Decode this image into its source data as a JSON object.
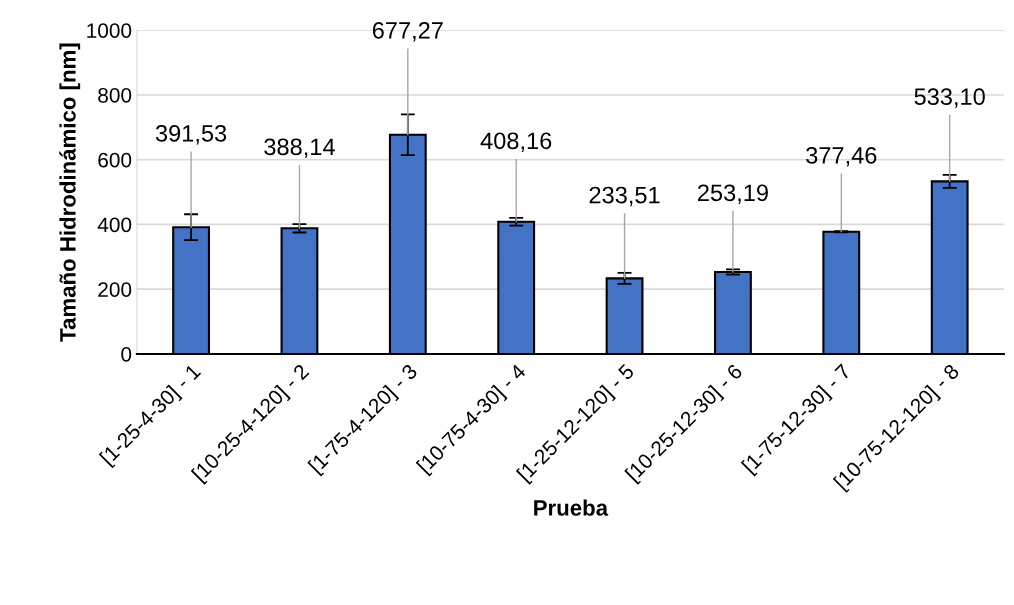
{
  "chart_data": {
    "type": "bar",
    "xlabel": "Prueba",
    "ylabel": "Tamaño Hidrodinámico [nm]",
    "categories": [
      "[1-25-4-30] - 1",
      "[10-25-4-120] - 2",
      "[1-75-4-120] - 3",
      "[10-75-4-30] - 4",
      "[1-25-12-120] - 5",
      "[10-25-12-30] - 6",
      "[1-75-12-30] - 7",
      "[10-75-12-120] - 8"
    ],
    "values": [
      391.53,
      388.14,
      677.27,
      408.16,
      233.51,
      253.19,
      377.46,
      533.1
    ],
    "errors": [
      40,
      13,
      63,
      12,
      17,
      8,
      2,
      20
    ],
    "value_labels": [
      "391,53",
      "388,14",
      "677,27",
      "408,16",
      "233,51",
      "253,19",
      "377,46",
      "533,10"
    ],
    "color": "#4472c4",
    "ylim": [
      0,
      1000
    ],
    "yticks": [
      0,
      200,
      400,
      600,
      800,
      1000
    ],
    "grid": "y"
  }
}
